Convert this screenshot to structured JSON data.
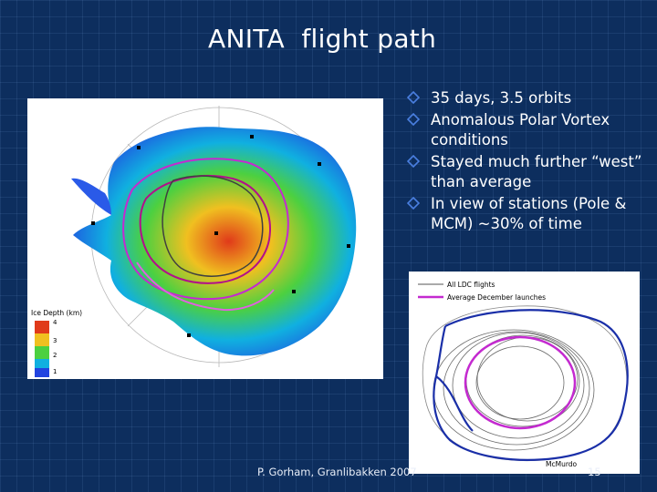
{
  "slide": {
    "title": "ANITA  flight path",
    "bullets": [
      "35 days, 3.5 orbits",
      "Anomalous Polar Vortex conditions",
      "Stayed much further “west” than average",
      "In view of stations (Pole & MCM) ~30% of time"
    ],
    "footer": "P. Gorham, Granlibakken 2007",
    "page_number": "15"
  },
  "main_map": {
    "colorbar_title": "Ice Depth (km)",
    "colorbar_ticks": [
      "4",
      "3",
      "2",
      "1"
    ]
  },
  "inset_map": {
    "legend": [
      "All LDC flights",
      "Average December launches"
    ],
    "station_label": "McMurdo"
  },
  "colors": {
    "background": "#0d2e5e",
    "bullet_marker": "#4a7fe0",
    "flight_path": "#c42ad0",
    "average_path": "#1a2fa8"
  }
}
